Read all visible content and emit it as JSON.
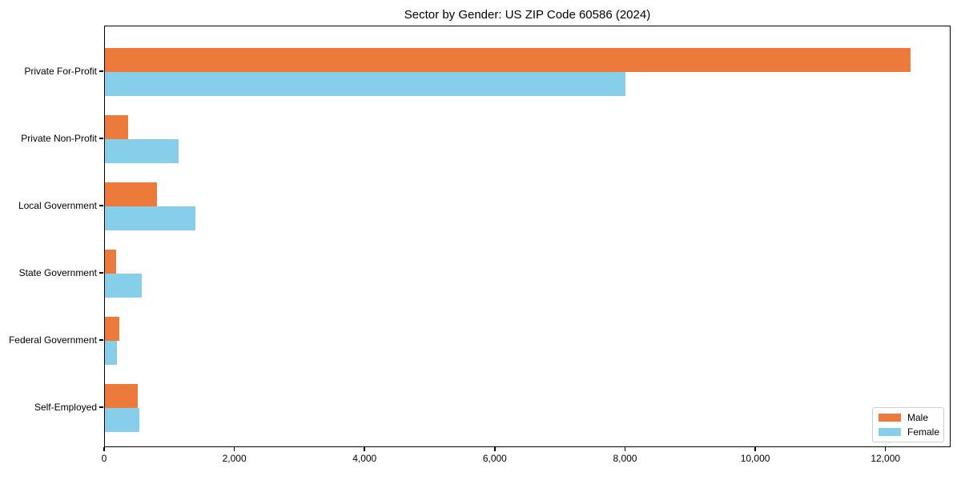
{
  "title": "Sector by Gender: US ZIP Code 60586 (2024)",
  "chart_data": {
    "type": "bar",
    "orientation": "horizontal",
    "title": "Sector by Gender: US ZIP Code 60586 (2024)",
    "xlabel": "",
    "ylabel": "",
    "categories": [
      "Private For-Profit",
      "Private Non-Profit",
      "Local Government",
      "State Government",
      "Federal Government",
      "Self-Employed"
    ],
    "series": [
      {
        "name": "Male",
        "color": "#EB7A3B",
        "values": [
          12370,
          360,
          800,
          170,
          220,
          510
        ]
      },
      {
        "name": "Female",
        "color": "#87CEEB",
        "values": [
          7990,
          1130,
          1390,
          570,
          190,
          530
        ]
      }
    ],
    "xlim": [
      0,
      13000
    ],
    "xticks": [
      0,
      2000,
      4000,
      6000,
      8000,
      10000,
      12000
    ],
    "xtick_labels": [
      "0",
      "2,000",
      "4,000",
      "6,000",
      "8,000",
      "10,000",
      "12,000"
    ],
    "grid": false,
    "legend_position": "lower right",
    "colors": {
      "male": "#EB7A3B",
      "female": "#87CEEB",
      "axis": "#000000",
      "legend_border": "#cccccc",
      "background": "#ffffff"
    }
  }
}
